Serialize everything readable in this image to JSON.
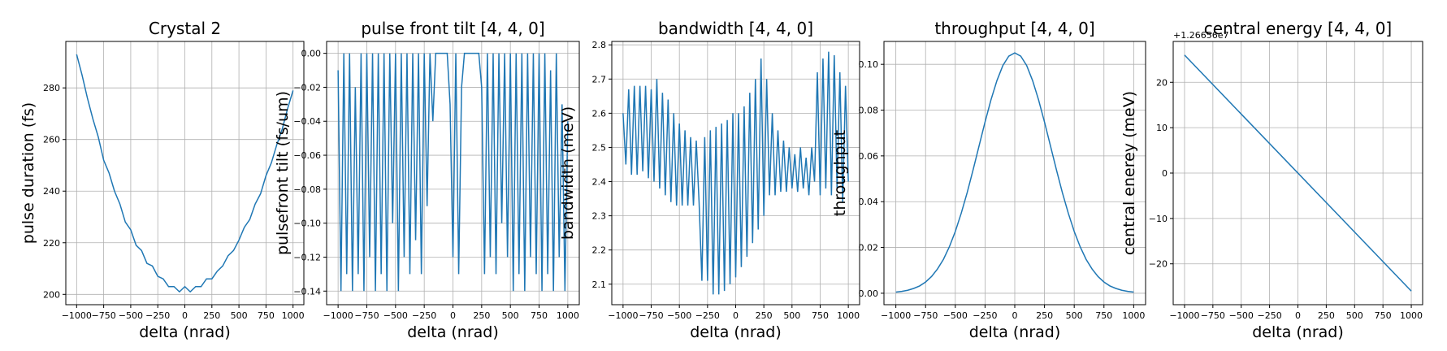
{
  "chart_data": [
    {
      "type": "line",
      "title": "Crystal 2",
      "x_label": "delta (nrad)",
      "y_label": "pulse duration (fs)",
      "color": "#1f77b4",
      "grid": true,
      "x": [
        -1000,
        -950,
        -900,
        -850,
        -800,
        -750,
        -700,
        -650,
        -600,
        -550,
        -500,
        -450,
        -400,
        -350,
        -300,
        -250,
        -200,
        -150,
        -100,
        -50,
        0,
        50,
        100,
        150,
        200,
        250,
        300,
        350,
        400,
        450,
        500,
        550,
        600,
        650,
        700,
        750,
        800,
        850,
        900,
        950,
        1000
      ],
      "values": [
        293,
        285,
        276,
        268,
        261,
        252,
        247,
        240,
        235,
        228,
        225,
        219,
        217,
        212,
        211,
        207,
        206,
        203,
        203,
        201,
        203,
        201,
        203,
        203,
        206,
        206,
        209,
        211,
        215,
        217,
        221,
        226,
        229,
        235,
        239,
        246,
        251,
        258,
        264,
        272,
        279
      ],
      "xlim": [
        -1100,
        1100
      ],
      "ylim": [
        196,
        298
      ],
      "xticks": [
        {
          "value": -1000,
          "label": "−1000"
        },
        {
          "value": -750,
          "label": "−750"
        },
        {
          "value": -500,
          "label": "−500"
        },
        {
          "value": -250,
          "label": "−250"
        },
        0,
        250,
        500,
        750,
        1000
      ],
      "yticks": [
        200,
        220,
        240,
        260,
        280
      ]
    },
    {
      "type": "line",
      "title": "pulse front tilt [4, 4, 0]",
      "x_label": "delta (nrad)",
      "y_label": "pulsefront tilt (fs/um)",
      "color": "#1f77b4",
      "grid": true,
      "x": [
        -1000,
        -975,
        -950,
        -925,
        -900,
        -875,
        -850,
        -825,
        -800,
        -775,
        -750,
        -725,
        -700,
        -675,
        -650,
        -625,
        -600,
        -575,
        -550,
        -525,
        -500,
        -475,
        -450,
        -425,
        -400,
        -375,
        -350,
        -325,
        -300,
        -275,
        -250,
        -225,
        -200,
        -175,
        -150,
        -125,
        -100,
        -75,
        -50,
        -25,
        0,
        25,
        50,
        75,
        100,
        125,
        150,
        175,
        200,
        225,
        250,
        275,
        300,
        325,
        350,
        375,
        400,
        425,
        450,
        475,
        500,
        525,
        550,
        575,
        600,
        625,
        650,
        675,
        700,
        725,
        750,
        775,
        800,
        825,
        850,
        875,
        900,
        925,
        950,
        975,
        1000
      ],
      "values": [
        -0.01,
        -0.14,
        0,
        -0.13,
        0,
        -0.14,
        -0.02,
        -0.13,
        0,
        -0.14,
        0,
        -0.12,
        0,
        -0.14,
        0,
        -0.13,
        0,
        -0.14,
        0,
        -0.1,
        0,
        -0.14,
        0,
        -0.12,
        0,
        -0.13,
        0,
        -0.11,
        0,
        -0.13,
        0,
        -0.09,
        0,
        -0.04,
        0,
        0,
        0,
        0,
        0,
        -0.03,
        -0.12,
        0,
        -0.13,
        -0.02,
        0,
        0,
        0,
        0,
        0,
        0,
        -0.02,
        -0.13,
        0,
        -0.12,
        0,
        -0.13,
        0,
        -0.1,
        0,
        -0.12,
        0,
        -0.14,
        0,
        -0.13,
        0,
        -0.14,
        0,
        -0.12,
        0,
        -0.13,
        0,
        -0.14,
        0,
        -0.13,
        -0.01,
        -0.14,
        0,
        -0.12,
        -0.03,
        -0.14,
        -0.04
      ],
      "xlim": [
        -1100,
        1100
      ],
      "ylim": [
        -0.148,
        0.007
      ],
      "xticks": [
        {
          "value": -1000,
          "label": "−1000"
        },
        {
          "value": -750,
          "label": "−750"
        },
        {
          "value": -500,
          "label": "−500"
        },
        {
          "value": -250,
          "label": "−250"
        },
        0,
        250,
        500,
        750,
        1000
      ],
      "yticks": [
        {
          "value": 0,
          "label": "0.00"
        },
        {
          "value": -0.02,
          "label": "−0.02"
        },
        {
          "value": -0.04,
          "label": "−0.04"
        },
        {
          "value": -0.06,
          "label": "−0.06"
        },
        {
          "value": -0.08,
          "label": "−0.08"
        },
        {
          "value": -0.1,
          "label": "−0.10"
        },
        {
          "value": -0.12,
          "label": "−0.12"
        },
        {
          "value": -0.14,
          "label": "−0.14"
        }
      ]
    },
    {
      "type": "line",
      "title": "bandwidth [4, 4, 0]",
      "x_label": "delta (nrad)",
      "y_label": "bandwidth (meV)",
      "color": "#1f77b4",
      "grid": true,
      "x": [
        -1000,
        -975,
        -950,
        -925,
        -900,
        -875,
        -850,
        -825,
        -800,
        -775,
        -750,
        -725,
        -700,
        -675,
        -650,
        -625,
        -600,
        -575,
        -550,
        -525,
        -500,
        -475,
        -450,
        -425,
        -400,
        -375,
        -350,
        -325,
        -300,
        -275,
        -250,
        -225,
        -200,
        -175,
        -150,
        -125,
        -100,
        -75,
        -50,
        -25,
        0,
        25,
        50,
        75,
        100,
        125,
        150,
        175,
        200,
        225,
        250,
        275,
        300,
        325,
        350,
        375,
        400,
        425,
        450,
        475,
        500,
        525,
        550,
        575,
        600,
        625,
        650,
        675,
        700,
        725,
        750,
        775,
        800,
        825,
        850,
        875,
        900,
        925,
        950,
        975,
        1000
      ],
      "values": [
        2.6,
        2.45,
        2.67,
        2.42,
        2.68,
        2.42,
        2.68,
        2.43,
        2.68,
        2.41,
        2.67,
        2.4,
        2.7,
        2.38,
        2.66,
        2.36,
        2.64,
        2.34,
        2.6,
        2.33,
        2.57,
        2.33,
        2.55,
        2.33,
        2.53,
        2.33,
        2.52,
        2.34,
        2.11,
        2.53,
        2.11,
        2.55,
        2.07,
        2.56,
        2.07,
        2.57,
        2.08,
        2.58,
        2.1,
        2.6,
        2.12,
        2.6,
        2.15,
        2.62,
        2.18,
        2.66,
        2.22,
        2.7,
        2.26,
        2.76,
        2.3,
        2.7,
        2.36,
        2.6,
        2.36,
        2.55,
        2.37,
        2.52,
        2.37,
        2.5,
        2.38,
        2.48,
        2.37,
        2.5,
        2.38,
        2.47,
        2.36,
        2.5,
        2.4,
        2.72,
        2.36,
        2.76,
        2.38,
        2.78,
        2.36,
        2.77,
        2.38,
        2.72,
        2.34,
        2.68,
        2.4
      ],
      "xlim": [
        -1100,
        1100
      ],
      "ylim": [
        2.04,
        2.81
      ],
      "xticks": [
        {
          "value": -1000,
          "label": "−1000"
        },
        {
          "value": -750,
          "label": "−750"
        },
        {
          "value": -500,
          "label": "−500"
        },
        {
          "value": -250,
          "label": "−250"
        },
        0,
        250,
        500,
        750,
        1000
      ],
      "yticks": [
        2.1,
        2.2,
        2.3,
        2.4,
        2.5,
        2.6,
        2.7,
        2.8
      ]
    },
    {
      "type": "line",
      "title": "throughput [4, 4, 0]",
      "x_label": "delta (nrad)",
      "y_label": "throughput",
      "color": "#1f77b4",
      "grid": true,
      "x": [
        -1000,
        -950,
        -900,
        -850,
        -800,
        -750,
        -700,
        -650,
        -600,
        -550,
        -500,
        -450,
        -400,
        -350,
        -300,
        -250,
        -200,
        -150,
        -100,
        -50,
        0,
        50,
        100,
        150,
        200,
        250,
        300,
        350,
        400,
        450,
        500,
        550,
        600,
        650,
        700,
        750,
        800,
        850,
        900,
        950,
        1000
      ],
      "values": [
        0.0005,
        0.0008,
        0.0013,
        0.0021,
        0.0032,
        0.0049,
        0.0073,
        0.0106,
        0.0148,
        0.0203,
        0.027,
        0.035,
        0.044,
        0.054,
        0.0644,
        0.0748,
        0.0845,
        0.0929,
        0.0995,
        0.1036,
        0.105,
        0.1036,
        0.0995,
        0.0929,
        0.0845,
        0.0748,
        0.0644,
        0.054,
        0.044,
        0.035,
        0.027,
        0.0203,
        0.0148,
        0.0106,
        0.0073,
        0.0049,
        0.0032,
        0.0021,
        0.0013,
        0.0008,
        0.0005
      ],
      "xlim": [
        -1100,
        1100
      ],
      "ylim": [
        -0.005,
        0.11
      ],
      "xticks": [
        {
          "value": -1000,
          "label": "−1000"
        },
        {
          "value": -750,
          "label": "−750"
        },
        {
          "value": -500,
          "label": "−500"
        },
        {
          "value": -250,
          "label": "−250"
        },
        0,
        250,
        500,
        750,
        1000
      ],
      "yticks": [
        {
          "value": 0,
          "label": "0.00"
        },
        0.02,
        0.04,
        0.06,
        0.08,
        {
          "value": 0.1,
          "label": "0.10"
        }
      ]
    },
    {
      "type": "line",
      "title": "central energy [4, 4, 0]",
      "x_label": "delta (nrad)",
      "y_label": "central enerey (meV)",
      "offset_label": "+1.26656e7",
      "color": "#1f77b4",
      "grid": true,
      "x": [
        -1000,
        1000
      ],
      "values": [
        26,
        -26
      ],
      "xlim": [
        -1100,
        1100
      ],
      "ylim": [
        -29,
        29
      ],
      "xticks": [
        {
          "value": -1000,
          "label": "−1000"
        },
        {
          "value": -750,
          "label": "−750"
        },
        {
          "value": -500,
          "label": "−500"
        },
        {
          "value": -250,
          "label": "−250"
        },
        0,
        250,
        500,
        750,
        1000
      ],
      "yticks": [
        {
          "value": -20,
          "label": "−20"
        },
        {
          "value": -10,
          "label": "−10"
        },
        0,
        10,
        20
      ]
    }
  ]
}
